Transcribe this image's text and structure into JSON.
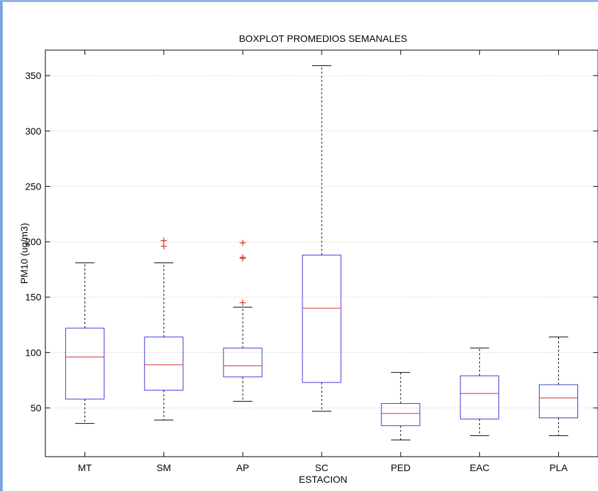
{
  "chart_data": {
    "type": "boxplot",
    "title": "BOXPLOT PROMEDIOS SEMANALES",
    "xlabel": "ESTACION",
    "ylabel": "PM10 (ug/m3)",
    "ylim": [
      6,
      373
    ],
    "yticks": [
      50,
      100,
      150,
      200,
      250,
      300,
      350
    ],
    "grid": "horizontal",
    "colors": {
      "box": "#3a3ad8",
      "median": "#d62a2a",
      "whisker": "#000000",
      "outlier": "#d62a2a",
      "grid": "#bdbdbd"
    },
    "categories": [
      "MT",
      "SM",
      "AP",
      "SC",
      "PED",
      "EAC",
      "PLA"
    ],
    "boxes": [
      {
        "whisker_low": 36,
        "q1": 58,
        "median": 96,
        "q3": 122,
        "whisker_high": 181,
        "outliers": []
      },
      {
        "whisker_low": 39,
        "q1": 66,
        "median": 89,
        "q3": 114,
        "whisker_high": 181,
        "outliers": [
          201,
          196
        ]
      },
      {
        "whisker_low": 56,
        "q1": 78,
        "median": 88,
        "q3": 104,
        "whisker_high": 141,
        "outliers": [
          199,
          186,
          185,
          145
        ]
      },
      {
        "whisker_low": 47,
        "q1": 73,
        "median": 140,
        "q3": 188,
        "whisker_high": 359,
        "outliers": []
      },
      {
        "whisker_low": 21,
        "q1": 34,
        "median": 45,
        "q3": 54,
        "whisker_high": 82,
        "outliers": []
      },
      {
        "whisker_low": 25,
        "q1": 40,
        "median": 63,
        "q3": 79,
        "whisker_high": 104,
        "outliers": []
      },
      {
        "whisker_low": 25,
        "q1": 41,
        "median": 59,
        "q3": 71,
        "whisker_high": 114,
        "outliers": []
      }
    ]
  }
}
